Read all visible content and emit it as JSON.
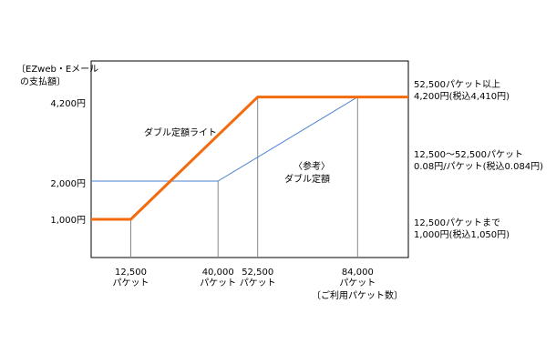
{
  "chart_data": {
    "type": "line",
    "title": "",
    "ylabel_lines": [
      "〔EZweb・Eメール",
      "の支払額〕"
    ],
    "xlabel": "〔ご利用パケット数〕",
    "xlim": [
      0,
      100000
    ],
    "ylim": [
      0,
      5400
    ],
    "x_ticks": [
      {
        "value": 12500,
        "label": "12,500",
        "sub": "パケット"
      },
      {
        "value": 40000,
        "label": "40,000",
        "sub": "パケット"
      },
      {
        "value": 52500,
        "label": "52,500",
        "sub": "パケット"
      },
      {
        "value": 84000,
        "label": "84,000",
        "sub": "パケット"
      }
    ],
    "y_ticks": [
      {
        "value": 1000,
        "label": "1,000円"
      },
      {
        "value": 2000,
        "label": "2,000円"
      },
      {
        "value": 4200,
        "label": "4,200円"
      }
    ],
    "series": [
      {
        "name": "ダブル定額ライト",
        "color": "#f26b0f",
        "points": [
          [
            0,
            1050
          ],
          [
            12500,
            1050
          ],
          [
            52500,
            4410
          ],
          [
            100000,
            4410
          ]
        ]
      },
      {
        "name": "〈参考〉ダブル定額",
        "color": "#4a7fd4",
        "points": [
          [
            0,
            2100
          ],
          [
            40000,
            2100
          ],
          [
            84000,
            4410
          ],
          [
            100000,
            4410
          ]
        ]
      }
    ],
    "series_labels": {
      "light": "ダブル定額ライト",
      "ref_line1": "〈参考〉",
      "ref_line2": "ダブル定額"
    },
    "annotations": [
      {
        "line1": "52,500パケット以上",
        "line2": "4,200円(税込4,410円)"
      },
      {
        "line1": "12,500〜52,500パケット",
        "line2": "0.08円/パケット(税込0.084円)"
      },
      {
        "line1": "12,500パケットまで",
        "line2": "1,000円(税込1,050円)"
      }
    ]
  }
}
